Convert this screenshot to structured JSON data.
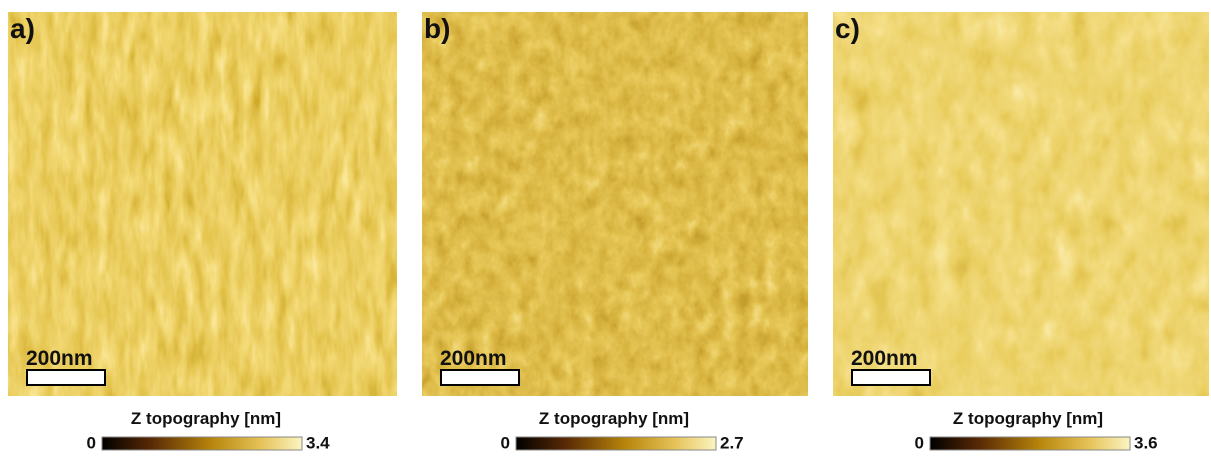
{
  "panels": [
    {
      "label": "a)",
      "scale_bar": "200nm",
      "colorbar": {
        "title": "Z topography [nm]",
        "min": "0",
        "max": "3.4"
      }
    },
    {
      "label": "b)",
      "scale_bar": "200nm",
      "colorbar": {
        "title": "Z topography [nm]",
        "min": "0",
        "max": "2.7"
      }
    },
    {
      "label": "c)",
      "scale_bar": "200nm",
      "colorbar": {
        "title": "Z topography [nm]",
        "min": "0",
        "max": "3.6"
      }
    }
  ]
}
